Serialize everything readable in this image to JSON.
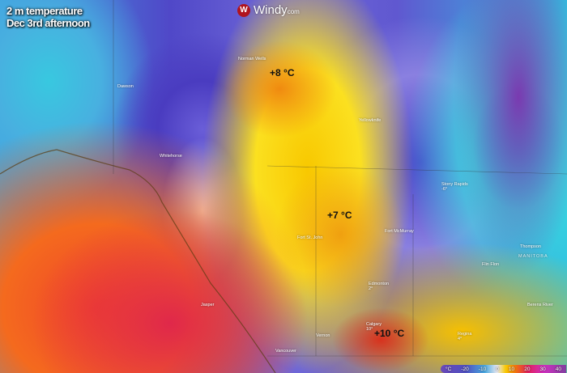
{
  "header": {
    "title": "2 m temperature",
    "subtitle": "Dec 3rd afternoon"
  },
  "logo": {
    "mark": "W",
    "text": "Windy",
    "suffix": "com"
  },
  "annotations": [
    {
      "label": "+8 °C"
    },
    {
      "label": "+7 °C"
    },
    {
      "label": "+10 °C"
    }
  ],
  "cities": [
    {
      "name": "Dawson"
    },
    {
      "name": "Whitehorse"
    },
    {
      "name": "Norman Wells"
    },
    {
      "name": "Yellowknife"
    },
    {
      "name": "Stony Rapids",
      "temp": "-6°"
    },
    {
      "name": "Fort St. John"
    },
    {
      "name": "Fort McMurray"
    },
    {
      "name": "Edmonton",
      "temp": "2°"
    },
    {
      "name": "Calgary",
      "temp": "10°"
    },
    {
      "name": "Vernon"
    },
    {
      "name": "Vancouver"
    },
    {
      "name": "Regina",
      "temp": "4°"
    },
    {
      "name": "Thompson"
    },
    {
      "name": "Flin Flon"
    },
    {
      "name": "Berens River"
    },
    {
      "name": "Jasper"
    },
    {
      "name": "MANITOBA"
    }
  ],
  "legend": {
    "unit": "°C",
    "ticks": [
      "-20",
      "-10",
      "0",
      "10",
      "20",
      "30",
      "40"
    ]
  },
  "colors": {
    "warm": "#f46a1e",
    "hot": "#e0284a",
    "mild": "#f8c800",
    "cold": "#4a3cc0",
    "very_cold": "#3ad8e0"
  }
}
